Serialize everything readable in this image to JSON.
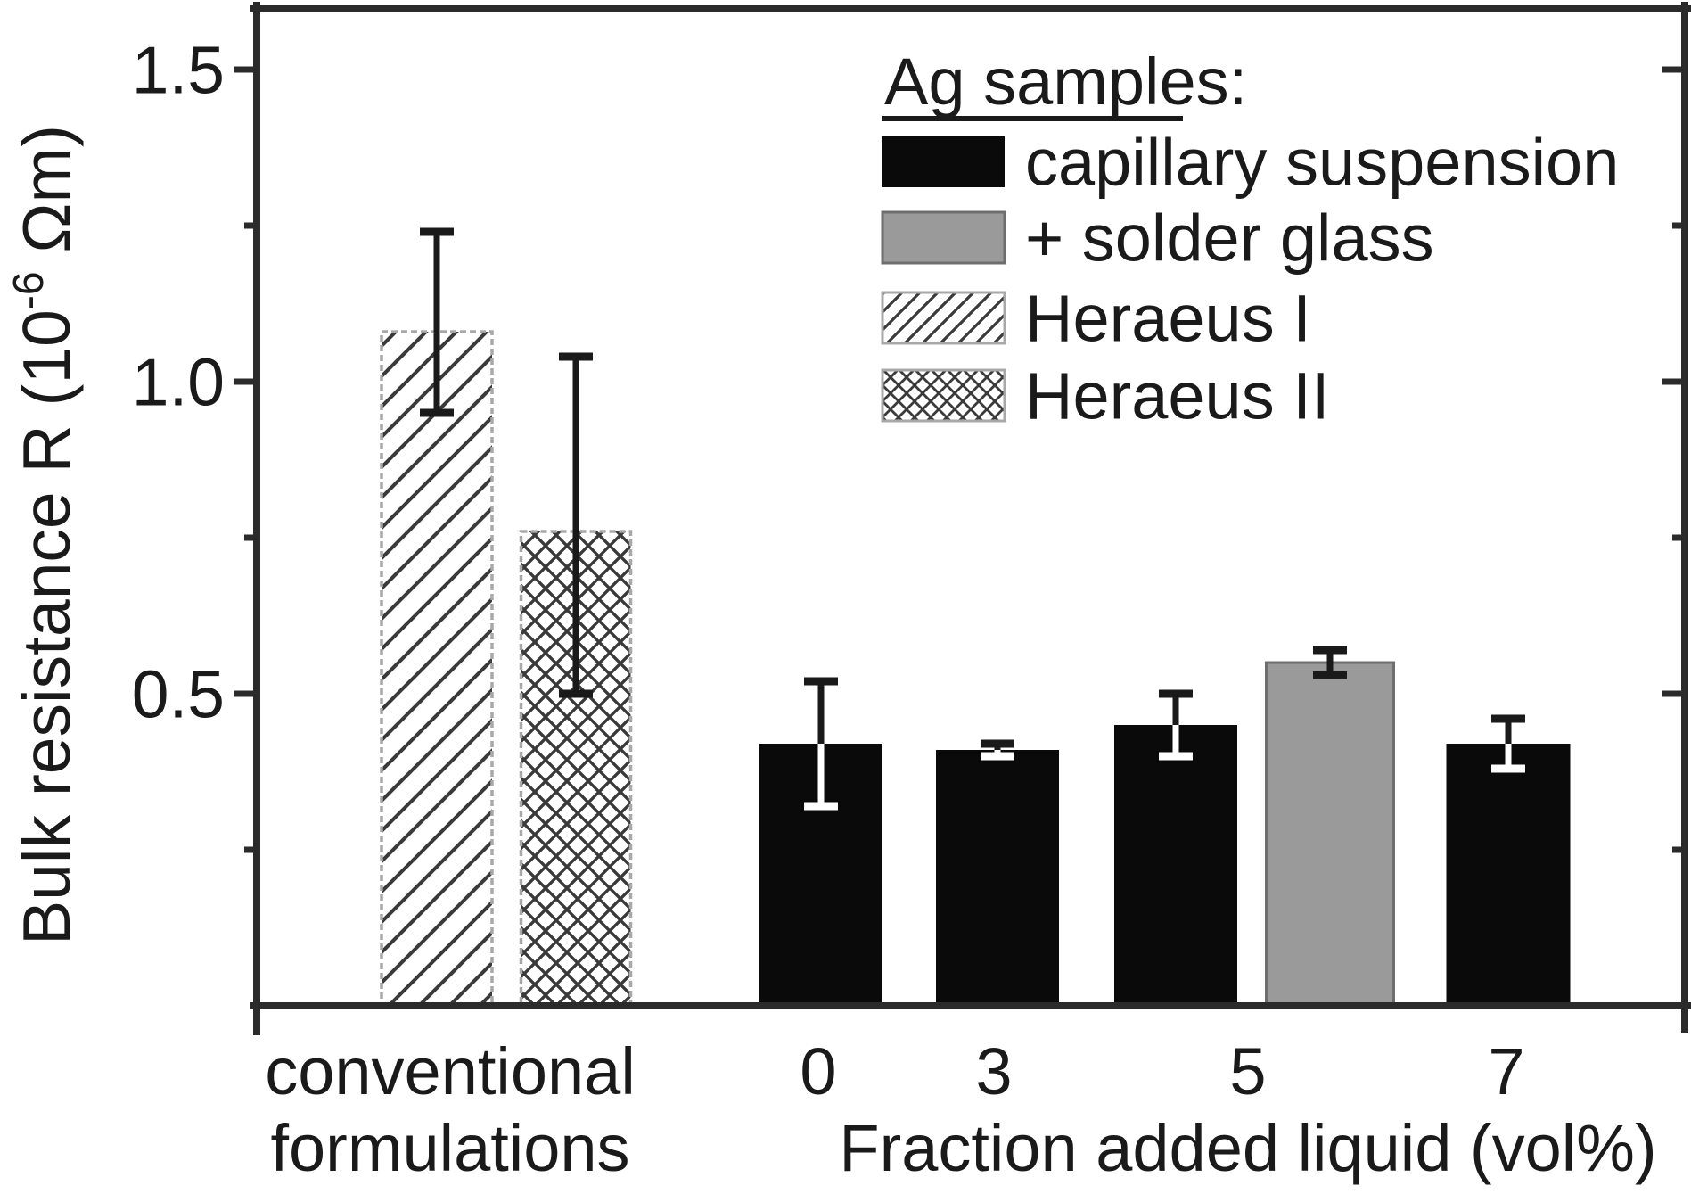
{
  "chart_data": {
    "type": "bar",
    "title": "",
    "ylabel": {
      "text": "Bulk resistance R (10-6 Ωm)",
      "base": "Bulk resistance R (10",
      "sup": "-6",
      "rest": " Ωm)"
    },
    "xlabel": "Fraction added liquid (vol%)",
    "ylim": [
      0,
      1.6
    ],
    "yticks": [
      {
        "value": 0.5,
        "label": "0.5"
      },
      {
        "value": 1.0,
        "label": "1.0"
      },
      {
        "value": 1.5,
        "label": "1.5"
      }
    ],
    "yticks_minor": [
      0.25,
      0.75,
      1.25
    ],
    "grid": false,
    "legend": {
      "position": "top-right-inside",
      "title": "Ag samples:",
      "entries": [
        {
          "label": "capillary suspension",
          "style": "black"
        },
        {
          "label": "+ solder glass",
          "style": "gray"
        },
        {
          "label": "Heraeus I",
          "style": "hatch-diagonal"
        },
        {
          "label": "Heraeus II",
          "style": "hatch-cross"
        }
      ]
    },
    "xticks": [
      {
        "label_lines": [
          "conventional",
          "formulations"
        ]
      },
      {
        "label_lines": [
          "0"
        ]
      },
      {
        "label_lines": [
          "3"
        ]
      },
      {
        "label_lines": [
          "5"
        ]
      },
      {
        "label_lines": [
          "7"
        ]
      }
    ],
    "bars": [
      {
        "series": "Heraeus I",
        "group": "conventional formulations",
        "value": 1.08,
        "err_plus": 0.16,
        "err_minus": 0.13
      },
      {
        "series": "Heraeus II",
        "group": "conventional formulations",
        "value": 0.76,
        "err_plus": 0.28,
        "err_minus": 0.26
      },
      {
        "series": "capillary suspension",
        "group": "0",
        "value": 0.42,
        "err_plus": 0.1,
        "err_minus": 0.1
      },
      {
        "series": "capillary suspension",
        "group": "3",
        "value": 0.41,
        "err_plus": 0.01,
        "err_minus": 0.01
      },
      {
        "series": "capillary suspension",
        "group": "5",
        "value": 0.45,
        "err_plus": 0.05,
        "err_minus": 0.05
      },
      {
        "series": "+ solder glass",
        "group": "5",
        "value": 0.55,
        "err_plus": 0.02,
        "err_minus": 0.02
      },
      {
        "series": "capillary suspension",
        "group": "7",
        "value": 0.42,
        "err_plus": 0.04,
        "err_minus": 0.04
      }
    ],
    "colors": {
      "bar_black": "#0a0a0a",
      "bar_gray": "#9a9a9a",
      "bar_gray_outline": "#6e6e6e",
      "hatch_line": "#3a3a3a",
      "hatch_outline": "#a8a8a8",
      "axis": "#2b2b2b",
      "text": "#1a1a1a",
      "error_on_dark": "#ffffff",
      "background": "#ffffff"
    }
  }
}
